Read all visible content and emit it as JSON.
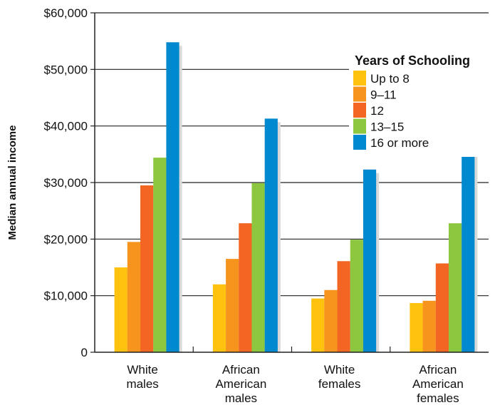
{
  "chart_data": {
    "type": "bar",
    "ylabel": "Median annual income",
    "ylim": [
      0,
      60000
    ],
    "y_ticks": [
      {
        "value": 0,
        "label": "0"
      },
      {
        "value": 10000,
        "label": "$10,000"
      },
      {
        "value": 20000,
        "label": "$20,000"
      },
      {
        "value": 30000,
        "label": "$30,000"
      },
      {
        "value": 40000,
        "label": "$40,000"
      },
      {
        "value": 50000,
        "label": "$50,000"
      },
      {
        "value": 60000,
        "label": "$60,000"
      }
    ],
    "categories": [
      [
        "White",
        "males"
      ],
      [
        "African",
        "American",
        "males"
      ],
      [
        "White",
        "females"
      ],
      [
        "African",
        "American",
        "females"
      ]
    ],
    "grid": true,
    "legend": {
      "title": "Years of Schooling",
      "placement": "top-right"
    },
    "series": [
      {
        "name": "Up to 8",
        "color": "#FFC20E",
        "values": [
          15000,
          12000,
          9500,
          8700
        ]
      },
      {
        "name": "9–11",
        "color": "#F7941D",
        "values": [
          19500,
          16500,
          11000,
          9100
        ]
      },
      {
        "name": "12",
        "color": "#F26522",
        "values": [
          29500,
          22800,
          16100,
          15700
        ]
      },
      {
        "name": "13–15",
        "color": "#8DC63F",
        "values": [
          34400,
          29900,
          19900,
          22800
        ]
      },
      {
        "name": "16 or more",
        "color": "#0089CF",
        "values": [
          54800,
          41300,
          32300,
          35300
        ]
      }
    ]
  }
}
